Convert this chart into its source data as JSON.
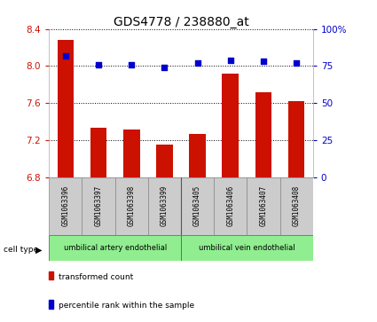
{
  "title": "GDS4778 / 238880_at",
  "samples": [
    "GSM1063396",
    "GSM1063397",
    "GSM1063398",
    "GSM1063399",
    "GSM1063405",
    "GSM1063406",
    "GSM1063407",
    "GSM1063408"
  ],
  "transformed_count": [
    8.28,
    7.33,
    7.31,
    7.15,
    7.27,
    7.92,
    7.72,
    7.62
  ],
  "percentile_rank": [
    82,
    76,
    76,
    74,
    77,
    79,
    78,
    77
  ],
  "ylim_left": [
    6.8,
    8.4
  ],
  "yticks_left": [
    6.8,
    7.2,
    7.6,
    8.0,
    8.4
  ],
  "ylim_right": [
    0,
    100
  ],
  "yticks_right": [
    0,
    25,
    50,
    75,
    100
  ],
  "bar_color": "#cc1100",
  "dot_color": "#0000cc",
  "groups": [
    {
      "label": "umbilical artery endothelial",
      "start": 0,
      "end": 4,
      "color": "#90ee90"
    },
    {
      "label": "umbilical vein endothelial",
      "start": 4,
      "end": 8,
      "color": "#90ee90"
    }
  ],
  "cell_type_label": "cell type",
  "legend_bar_label": "transformed count",
  "legend_dot_label": "percentile rank within the sample",
  "label_color_left": "#cc1100",
  "label_color_right": "#0000cc",
  "tick_label_fontsize": 7.5,
  "title_fontsize": 10,
  "bar_width": 0.5
}
